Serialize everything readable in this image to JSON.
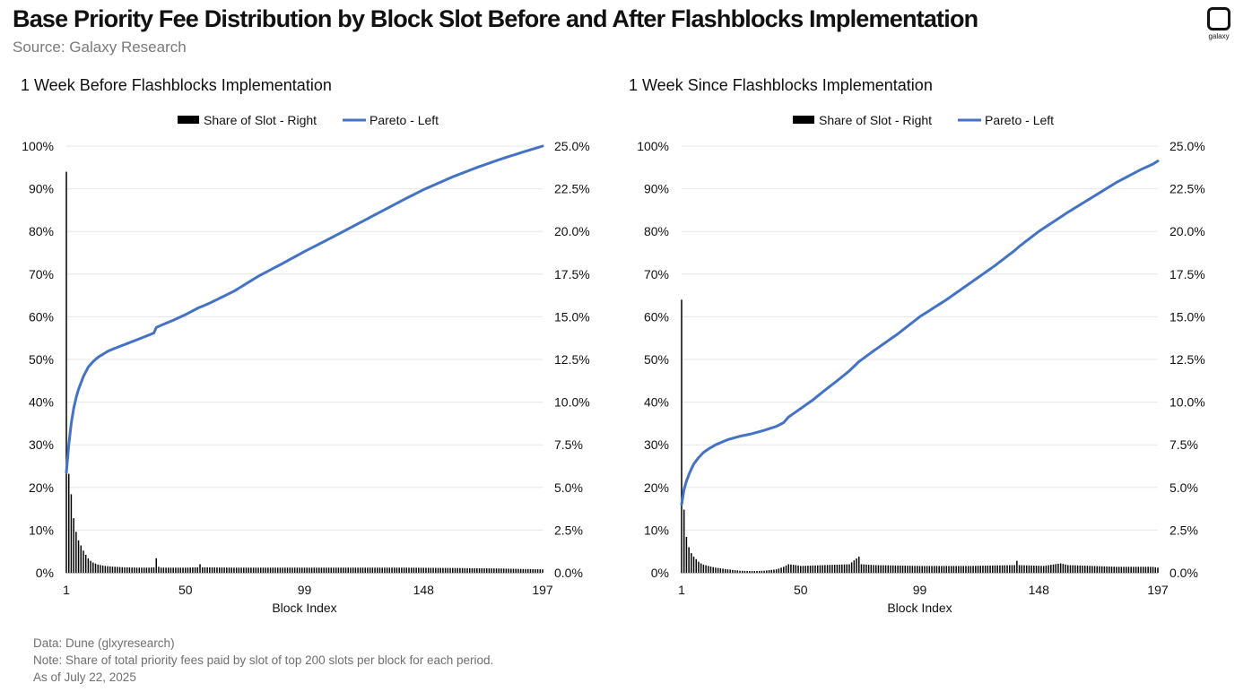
{
  "header": {
    "title": "Base Priority Fee Distribution by Block Slot Before and After Flashblocks Implementation",
    "subtitle": "Source: Galaxy Research",
    "logo_text": "galaxy"
  },
  "footer": {
    "data_line": "Data: Dune (glxyresearch)",
    "note_line": "Note: Share of total priority fees paid by slot of top 200 slots per block for each period.",
    "date_line": "As of July 22, 2025"
  },
  "colors": {
    "pareto": "#4472C4",
    "share": "#000000",
    "grid": "#e6e6e6"
  },
  "chart_data": [
    {
      "type": "bar+line",
      "title": "1 Week Before Flashblocks Implementation",
      "xlabel": "Block Index",
      "x_ticks": [
        "1",
        "50",
        "99",
        "148",
        "197"
      ],
      "x_range": [
        1,
        197
      ],
      "legend": {
        "placement": "top",
        "entries": [
          "Share of Slot - Right",
          "Pareto - Left"
        ]
      },
      "left_axis": {
        "ticks": [
          "0%",
          "10%",
          "20%",
          "30%",
          "40%",
          "50%",
          "60%",
          "70%",
          "80%",
          "90%",
          "100%"
        ],
        "range": [
          0,
          100
        ]
      },
      "right_axis": {
        "ticks": [
          "0.0%",
          "2.5%",
          "5.0%",
          "7.5%",
          "10.0%",
          "12.5%",
          "15.0%",
          "17.5%",
          "20.0%",
          "22.5%",
          "25.0%"
        ],
        "range": [
          0,
          25
        ]
      },
      "grid": true,
      "series": [
        {
          "name": "Share of Slot - Right",
          "axis": "right",
          "kind": "bar",
          "points": [
            [
              1,
              23.5
            ],
            [
              2,
              5.8
            ],
            [
              3,
              4.6
            ],
            [
              4,
              3.2
            ],
            [
              5,
              2.4
            ],
            [
              6,
              1.9
            ],
            [
              7,
              1.6
            ],
            [
              8,
              1.3
            ],
            [
              9,
              1.05
            ],
            [
              10,
              0.85
            ],
            [
              11,
              0.7
            ],
            [
              12,
              0.6
            ],
            [
              14,
              0.48
            ],
            [
              17,
              0.4
            ],
            [
              20,
              0.36
            ],
            [
              25,
              0.32
            ],
            [
              30,
              0.3
            ],
            [
              35,
              0.3
            ],
            [
              37,
              0.32
            ],
            [
              38,
              0.85
            ],
            [
              39,
              0.35
            ],
            [
              40,
              0.3
            ],
            [
              50,
              0.3
            ],
            [
              55,
              0.32
            ],
            [
              56,
              0.5
            ],
            [
              57,
              0.32
            ],
            [
              70,
              0.3
            ],
            [
              90,
              0.3
            ],
            [
              110,
              0.3
            ],
            [
              140,
              0.3
            ],
            [
              160,
              0.28
            ],
            [
              180,
              0.25
            ],
            [
              197,
              0.2
            ]
          ]
        },
        {
          "name": "Pareto - Left",
          "axis": "left",
          "kind": "line",
          "points": [
            [
              1,
              23.5
            ],
            [
              2,
              30
            ],
            [
              3,
              35
            ],
            [
              4,
              38.5
            ],
            [
              5,
              41
            ],
            [
              6,
              43
            ],
            [
              8,
              46
            ],
            [
              10,
              48.2
            ],
            [
              12,
              49.5
            ],
            [
              14,
              50.5
            ],
            [
              16,
              51.2
            ],
            [
              18,
              51.9
            ],
            [
              20,
              52.4
            ],
            [
              25,
              53.5
            ],
            [
              30,
              54.6
            ],
            [
              34,
              55.5
            ],
            [
              37,
              56.2
            ],
            [
              38,
              57.5
            ],
            [
              40,
              58
            ],
            [
              45,
              59.2
            ],
            [
              50,
              60.5
            ],
            [
              55,
              62
            ],
            [
              60,
              63.2
            ],
            [
              70,
              66
            ],
            [
              80,
              69.5
            ],
            [
              90,
              72.5
            ],
            [
              99,
              75.3
            ],
            [
              110,
              78.5
            ],
            [
              120,
              81.5
            ],
            [
              130,
              84.5
            ],
            [
              140,
              87.5
            ],
            [
              148,
              89.8
            ],
            [
              160,
              92.8
            ],
            [
              170,
              95
            ],
            [
              180,
              97
            ],
            [
              190,
              98.8
            ],
            [
              197,
              100
            ]
          ]
        }
      ]
    },
    {
      "type": "bar+line",
      "title": "1 Week Since Flashblocks Implementation",
      "xlabel": "Block Index",
      "x_ticks": [
        "1",
        "50",
        "99",
        "148",
        "197"
      ],
      "x_range": [
        1,
        197
      ],
      "legend": {
        "placement": "top",
        "entries": [
          "Share of Slot - Right",
          "Pareto - Left"
        ]
      },
      "left_axis": {
        "ticks": [
          "0%",
          "10%",
          "20%",
          "30%",
          "40%",
          "50%",
          "60%",
          "70%",
          "80%",
          "90%",
          "100%"
        ],
        "range": [
          0,
          100
        ]
      },
      "right_axis": {
        "ticks": [
          "0.0%",
          "2.5%",
          "5.0%",
          "7.5%",
          "10.0%",
          "12.5%",
          "15.0%",
          "17.5%",
          "20.0%",
          "22.5%",
          "25.0%"
        ],
        "range": [
          0,
          25
        ]
      },
      "grid": true,
      "series": [
        {
          "name": "Share of Slot - Right",
          "axis": "right",
          "kind": "bar",
          "points": [
            [
              1,
              16
            ],
            [
              2,
              3.7
            ],
            [
              3,
              2.1
            ],
            [
              4,
              1.5
            ],
            [
              5,
              1.15
            ],
            [
              6,
              0.95
            ],
            [
              7,
              0.8
            ],
            [
              8,
              0.65
            ],
            [
              9,
              0.55
            ],
            [
              10,
              0.48
            ],
            [
              12,
              0.4
            ],
            [
              15,
              0.3
            ],
            [
              20,
              0.2
            ],
            [
              25,
              0.12
            ],
            [
              30,
              0.1
            ],
            [
              35,
              0.12
            ],
            [
              40,
              0.2
            ],
            [
              43,
              0.35
            ],
            [
              45,
              0.5
            ],
            [
              48,
              0.45
            ],
            [
              50,
              0.4
            ],
            [
              60,
              0.45
            ],
            [
              70,
              0.5
            ],
            [
              74,
              0.95
            ],
            [
              75,
              0.5
            ],
            [
              80,
              0.45
            ],
            [
              99,
              0.4
            ],
            [
              120,
              0.4
            ],
            [
              138,
              0.45
            ],
            [
              139,
              0.7
            ],
            [
              140,
              0.45
            ],
            [
              150,
              0.4
            ],
            [
              157,
              0.55
            ],
            [
              160,
              0.45
            ],
            [
              180,
              0.35
            ],
            [
              195,
              0.35
            ],
            [
              197,
              0.3
            ]
          ]
        },
        {
          "name": "Pareto - Left",
          "axis": "left",
          "kind": "line",
          "points": [
            [
              1,
              16
            ],
            [
              2,
              19.5
            ],
            [
              3,
              21.5
            ],
            [
              4,
              23
            ],
            [
              5,
              24.3
            ],
            [
              6,
              25.5
            ],
            [
              8,
              27
            ],
            [
              10,
              28.2
            ],
            [
              12,
              29
            ],
            [
              15,
              30
            ],
            [
              20,
              31.2
            ],
            [
              25,
              32
            ],
            [
              30,
              32.6
            ],
            [
              35,
              33.4
            ],
            [
              40,
              34.3
            ],
            [
              43,
              35.2
            ],
            [
              45,
              36.5
            ],
            [
              50,
              38.5
            ],
            [
              55,
              40.5
            ],
            [
              60,
              42.8
            ],
            [
              65,
              45
            ],
            [
              70,
              47.3
            ],
            [
              74,
              49.5
            ],
            [
              80,
              52
            ],
            [
              90,
              56
            ],
            [
              99,
              60
            ],
            [
              110,
              64
            ],
            [
              120,
              68
            ],
            [
              130,
              72
            ],
            [
              138,
              75.5
            ],
            [
              140,
              76.5
            ],
            [
              148,
              80
            ],
            [
              160,
              84.5
            ],
            [
              170,
              88
            ],
            [
              180,
              91.5
            ],
            [
              190,
              94.5
            ],
            [
              195,
              95.8
            ],
            [
              197,
              96.5
            ]
          ]
        }
      ]
    }
  ]
}
